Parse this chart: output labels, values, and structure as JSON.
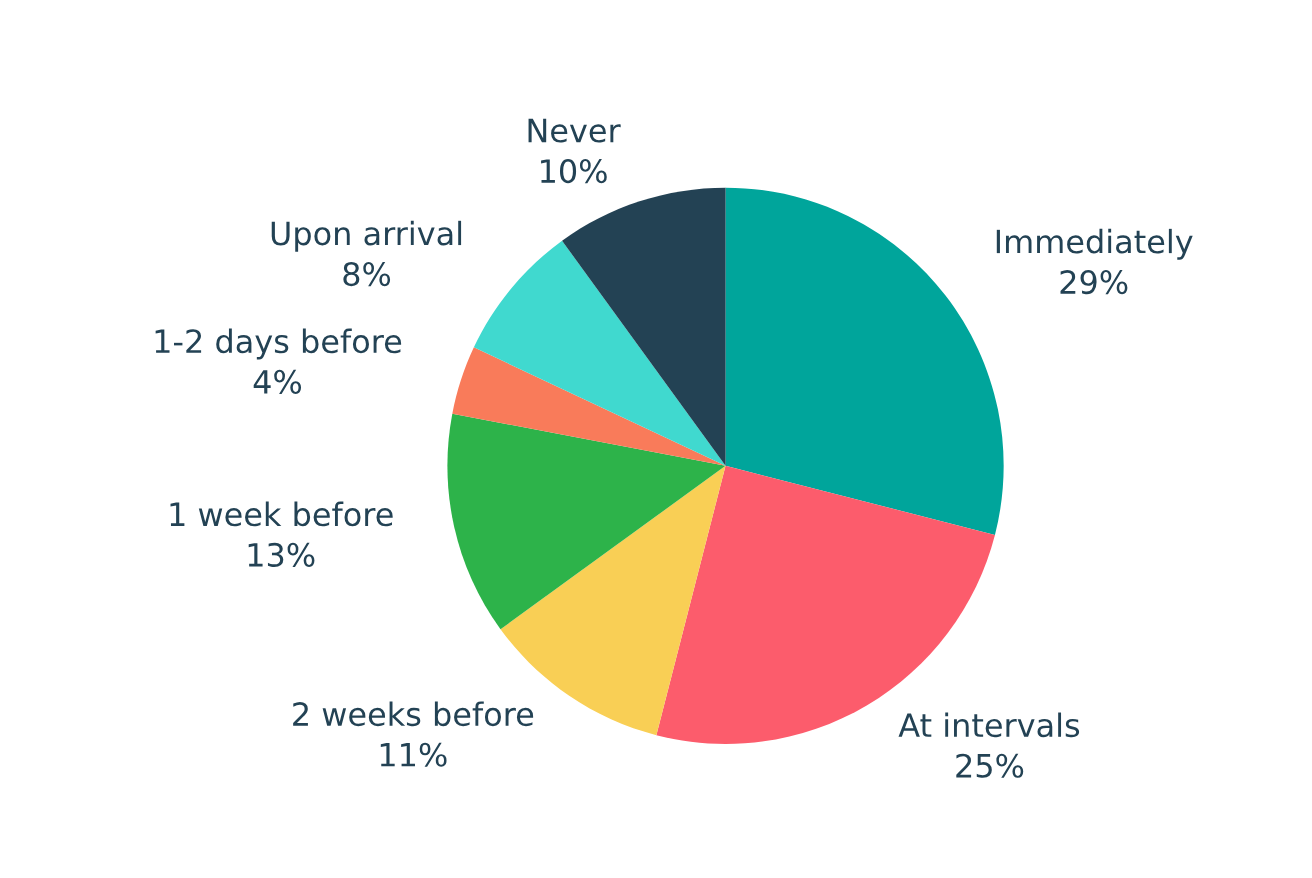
{
  "chart_data": {
    "type": "pie",
    "categories": [
      "Immediately",
      "At intervals",
      "2 weeks before",
      "1 week before",
      "1-2 days before",
      "Upon arrival",
      "Never"
    ],
    "values": [
      29,
      25,
      11,
      13,
      4,
      8,
      10
    ],
    "value_labels": [
      "29%",
      "25%",
      "11%",
      "13%",
      "4%",
      "8%",
      "10%"
    ],
    "colors": [
      "#00a59b",
      "#fc5c6c",
      "#f9cf55",
      "#2db34a",
      "#f97b5a",
      "#40d9cf",
      "#234254"
    ]
  }
}
